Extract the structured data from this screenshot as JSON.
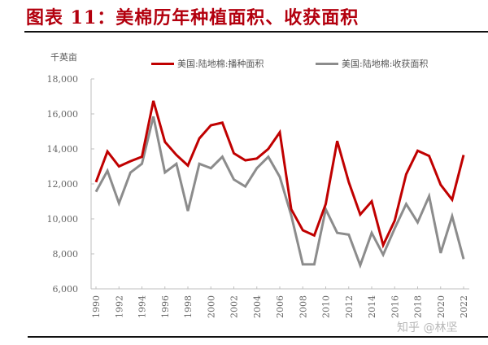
{
  "header": {
    "title": "图表 11：美棉历年种植面积、收获面积"
  },
  "watermark": "知乎 @林坚",
  "colors": {
    "planted": "#c00000",
    "harvested": "#8c8c8c",
    "title": "#b3000e"
  },
  "chart_data": {
    "type": "line",
    "title": "美棉历年种植面积、收获面积",
    "xlabel": "",
    "ylabel": "千英亩",
    "ylim": [
      6000,
      18000
    ],
    "yticks": [
      6000,
      8000,
      10000,
      12000,
      14000,
      16000,
      18000
    ],
    "ytick_labels": [
      "6,000",
      "8,000",
      "10,000",
      "12,000",
      "14,000",
      "16,000",
      "18,000"
    ],
    "xtick_labels": [
      "1990",
      "1992",
      "1994",
      "1996",
      "1998",
      "2000",
      "2002",
      "2004",
      "2006",
      "2008",
      "2010",
      "2012",
      "2014",
      "2016",
      "2018",
      "2020",
      "2022"
    ],
    "grid": false,
    "legend_position": "top",
    "x": [
      1990,
      1991,
      1992,
      1993,
      1994,
      1995,
      1996,
      1997,
      1998,
      1999,
      2000,
      2001,
      2002,
      2003,
      2004,
      2005,
      2006,
      2007,
      2008,
      2009,
      2010,
      2011,
      2012,
      2013,
      2014,
      2015,
      2016,
      2017,
      2018,
      2019,
      2020,
      2021,
      2022
    ],
    "series": [
      {
        "name": "美国:陆地棉:播种面积",
        "color": "#c00000",
        "values": [
          12100,
          13850,
          13000,
          13300,
          13550,
          16750,
          14400,
          13650,
          13050,
          14600,
          15350,
          15500,
          13750,
          13350,
          13450,
          14000,
          14950,
          10550,
          9350,
          9050,
          10850,
          14450,
          12100,
          10250,
          11000,
          8500,
          9900,
          12550,
          13900,
          13600,
          11950,
          11100,
          13650
        ]
      },
      {
        "name": "美国:陆地棉:收获面积",
        "color": "#8c8c8c",
        "values": [
          11550,
          12750,
          10900,
          12650,
          13150,
          15850,
          12650,
          13150,
          10450,
          13150,
          12900,
          13550,
          12250,
          11850,
          12900,
          13550,
          12400,
          10200,
          7400,
          7400,
          10550,
          9200,
          9100,
          7350,
          9200,
          7950,
          9450,
          10850,
          9800,
          11300,
          8050,
          10150,
          7700
        ]
      }
    ]
  }
}
